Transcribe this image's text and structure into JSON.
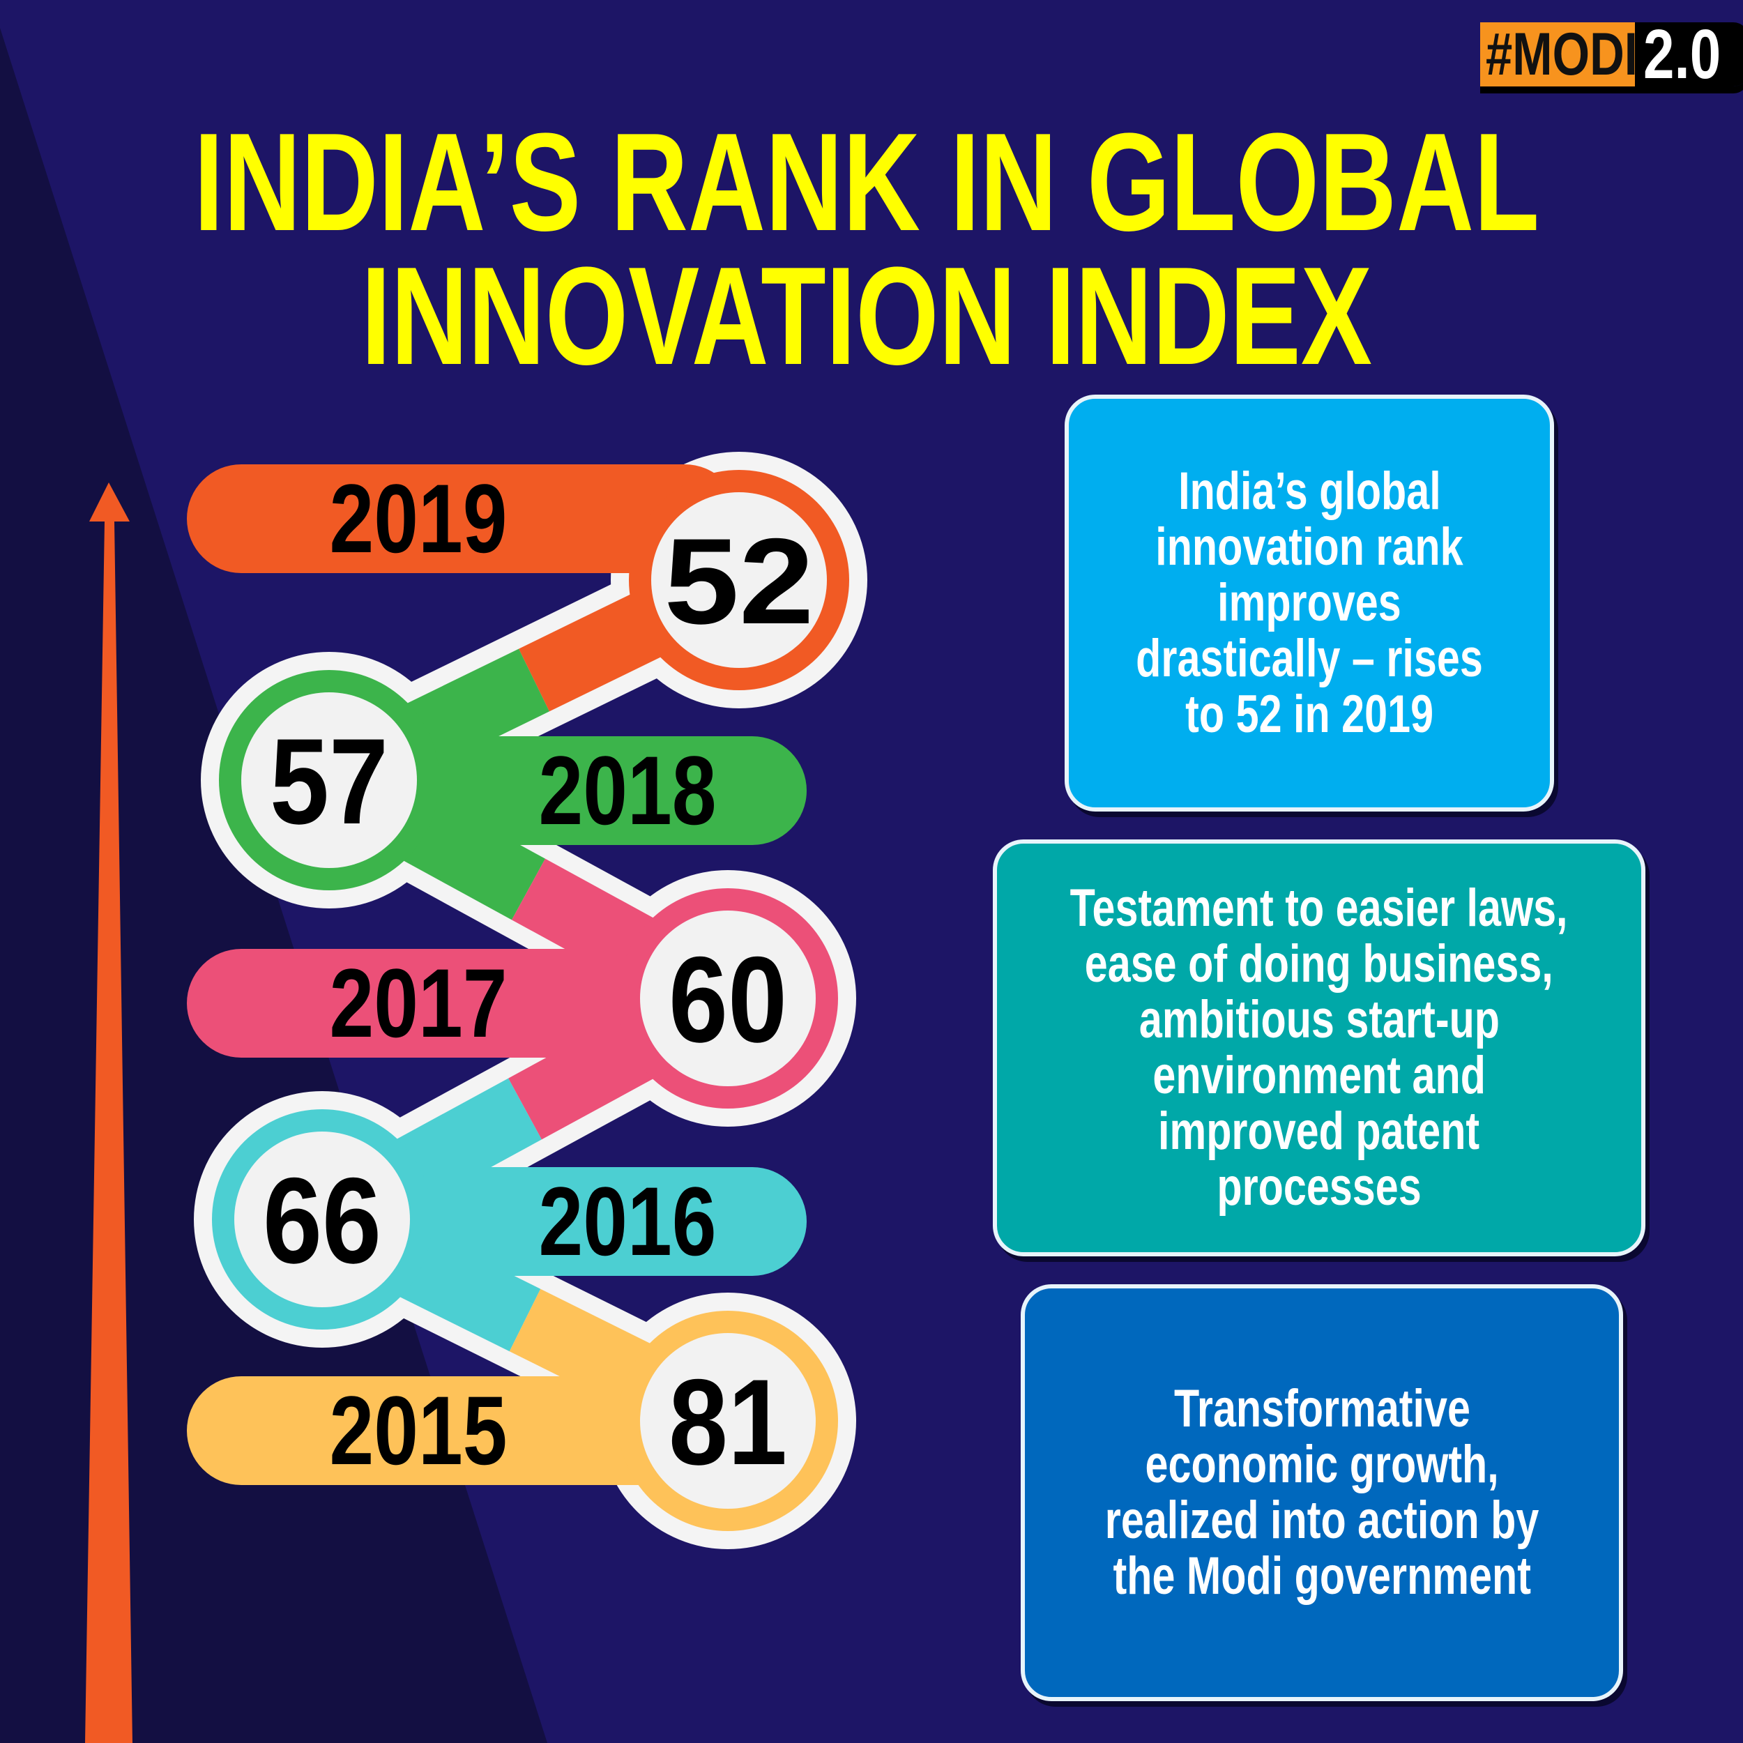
{
  "logo": {
    "left": "#MODI",
    "right": "2.0"
  },
  "title": {
    "line1": "INDIA’S RANK IN GLOBAL",
    "line2": "INNOVATION INDEX"
  },
  "chart_data": {
    "type": "table",
    "title": "INDIA’S RANK IN GLOBAL INNOVATION INDEX",
    "categories": [
      "2019",
      "2018",
      "2017",
      "2016",
      "2015"
    ],
    "values": [
      52,
      57,
      60,
      66,
      81
    ],
    "colors": [
      "#f15a24",
      "#3cb44b",
      "#ec5078",
      "#4ccfd2",
      "#fec259"
    ]
  },
  "boxes": [
    {
      "lines": [
        "India’s global",
        "innovation rank",
        "improves",
        "drastically – rises",
        "to 52 in 2019"
      ],
      "color": "#00aeef"
    },
    {
      "lines": [
        "Testament to easier laws,",
        "ease of doing business,",
        "ambitious start-up",
        "environment and",
        "improved patent",
        "processes"
      ],
      "color": "#00a8a8"
    },
    {
      "lines": [
        "Transformative",
        "economic growth,",
        "realized into action by",
        "the Modi government"
      ],
      "color": "#0068bd"
    }
  ]
}
